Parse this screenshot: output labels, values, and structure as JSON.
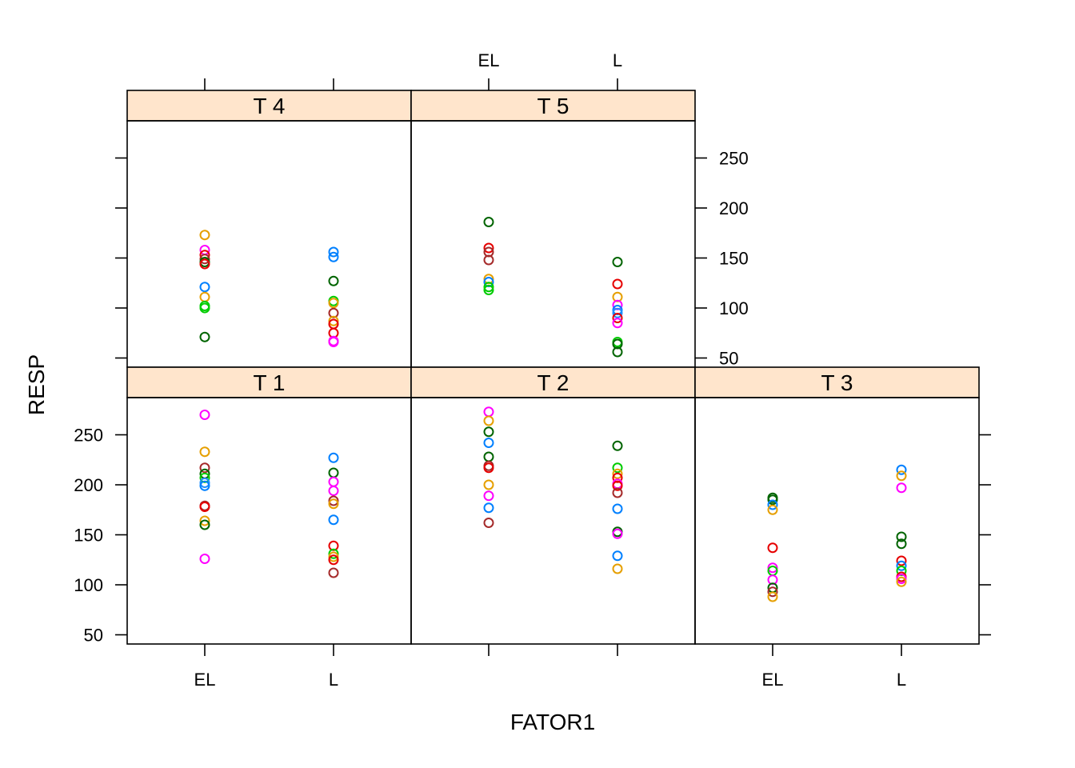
{
  "chart_data": {
    "type": "scatter",
    "layout": "trellis",
    "xlabel": "FATOR1",
    "ylabel": "RESP",
    "x_categories": [
      "EL",
      "L"
    ],
    "y_ticks": [
      50,
      100,
      150,
      200,
      250
    ],
    "strip_color": "#FFE5CC",
    "palette": [
      "#E69F00",
      "#FF00FF",
      "#A52A2A",
      "#0080FF",
      "#00CC00",
      "#006400",
      "#E60000",
      "#1E90FF"
    ],
    "panels": [
      {
        "id": "t4",
        "label": "T 4",
        "points": [
          {
            "x": "EL",
            "y": 173,
            "color": 0
          },
          {
            "x": "EL",
            "y": 158,
            "color": 1
          },
          {
            "x": "EL",
            "y": 153,
            "color": 6
          },
          {
            "x": "EL",
            "y": 149,
            "color": 2
          },
          {
            "x": "EL",
            "y": 146,
            "color": 5
          },
          {
            "x": "EL",
            "y": 144,
            "color": 6
          },
          {
            "x": "EL",
            "y": 121,
            "color": 3
          },
          {
            "x": "EL",
            "y": 111,
            "color": 0
          },
          {
            "x": "EL",
            "y": 102,
            "color": 4
          },
          {
            "x": "EL",
            "y": 100,
            "color": 4
          },
          {
            "x": "EL",
            "y": 71,
            "color": 5
          },
          {
            "x": "L",
            "y": 156,
            "color": 3
          },
          {
            "x": "L",
            "y": 151,
            "color": 3
          },
          {
            "x": "L",
            "y": 127,
            "color": 5
          },
          {
            "x": "L",
            "y": 107,
            "color": 4
          },
          {
            "x": "L",
            "y": 105,
            "color": 0
          },
          {
            "x": "L",
            "y": 95,
            "color": 2
          },
          {
            "x": "L",
            "y": 87,
            "color": 0
          },
          {
            "x": "L",
            "y": 84,
            "color": 6
          },
          {
            "x": "L",
            "y": 75,
            "color": 6
          },
          {
            "x": "L",
            "y": 67,
            "color": 1
          },
          {
            "x": "L",
            "y": 66,
            "color": 1
          }
        ]
      },
      {
        "id": "t5",
        "label": "T 5",
        "points": [
          {
            "x": "EL",
            "y": 186,
            "color": 5
          },
          {
            "x": "EL",
            "y": 160,
            "color": 6
          },
          {
            "x": "EL",
            "y": 156,
            "color": 2
          },
          {
            "x": "EL",
            "y": 148,
            "color": 2
          },
          {
            "x": "EL",
            "y": 129,
            "color": 0
          },
          {
            "x": "EL",
            "y": 126,
            "color": 3
          },
          {
            "x": "EL",
            "y": 121,
            "color": 4
          },
          {
            "x": "EL",
            "y": 118,
            "color": 4
          },
          {
            "x": "L",
            "y": 146,
            "color": 5
          },
          {
            "x": "L",
            "y": 124,
            "color": 6
          },
          {
            "x": "L",
            "y": 111,
            "color": 0
          },
          {
            "x": "L",
            "y": 103,
            "color": 1
          },
          {
            "x": "L",
            "y": 98,
            "color": 3
          },
          {
            "x": "L",
            "y": 95,
            "color": 7
          },
          {
            "x": "L",
            "y": 90,
            "color": 6
          },
          {
            "x": "L",
            "y": 85,
            "color": 1
          },
          {
            "x": "L",
            "y": 66,
            "color": 4
          },
          {
            "x": "L",
            "y": 64,
            "color": 5
          },
          {
            "x": "L",
            "y": 56,
            "color": 5
          }
        ]
      },
      {
        "id": "t1",
        "label": "T 1",
        "points": [
          {
            "x": "EL",
            "y": 270,
            "color": 1
          },
          {
            "x": "EL",
            "y": 233,
            "color": 0
          },
          {
            "x": "EL",
            "y": 217,
            "color": 2
          },
          {
            "x": "EL",
            "y": 211,
            "color": 5
          },
          {
            "x": "EL",
            "y": 207,
            "color": 4
          },
          {
            "x": "EL",
            "y": 202,
            "color": 7
          },
          {
            "x": "EL",
            "y": 199,
            "color": 3
          },
          {
            "x": "EL",
            "y": 179,
            "color": 2
          },
          {
            "x": "EL",
            "y": 178,
            "color": 6
          },
          {
            "x": "EL",
            "y": 164,
            "color": 0
          },
          {
            "x": "EL",
            "y": 160,
            "color": 5
          },
          {
            "x": "EL",
            "y": 126,
            "color": 1
          },
          {
            "x": "L",
            "y": 227,
            "color": 3
          },
          {
            "x": "L",
            "y": 212,
            "color": 5
          },
          {
            "x": "L",
            "y": 203,
            "color": 1
          },
          {
            "x": "L",
            "y": 194,
            "color": 1
          },
          {
            "x": "L",
            "y": 184,
            "color": 2
          },
          {
            "x": "L",
            "y": 181,
            "color": 0
          },
          {
            "x": "L",
            "y": 165,
            "color": 3
          },
          {
            "x": "L",
            "y": 139,
            "color": 6
          },
          {
            "x": "L",
            "y": 131,
            "color": 4
          },
          {
            "x": "L",
            "y": 128,
            "color": 0
          },
          {
            "x": "L",
            "y": 125,
            "color": 6
          },
          {
            "x": "L",
            "y": 112,
            "color": 2
          }
        ]
      },
      {
        "id": "t2",
        "label": "T 2",
        "points": [
          {
            "x": "EL",
            "y": 273,
            "color": 1
          },
          {
            "x": "EL",
            "y": 264,
            "color": 0
          },
          {
            "x": "EL",
            "y": 253,
            "color": 5
          },
          {
            "x": "EL",
            "y": 242,
            "color": 3
          },
          {
            "x": "EL",
            "y": 228,
            "color": 5
          },
          {
            "x": "EL",
            "y": 219,
            "color": 2
          },
          {
            "x": "EL",
            "y": 217,
            "color": 6
          },
          {
            "x": "EL",
            "y": 200,
            "color": 0
          },
          {
            "x": "EL",
            "y": 189,
            "color": 1
          },
          {
            "x": "EL",
            "y": 177,
            "color": 3
          },
          {
            "x": "EL",
            "y": 162,
            "color": 2
          },
          {
            "x": "L",
            "y": 239,
            "color": 5
          },
          {
            "x": "L",
            "y": 217,
            "color": 4
          },
          {
            "x": "L",
            "y": 211,
            "color": 0
          },
          {
            "x": "L",
            "y": 207,
            "color": 6
          },
          {
            "x": "L",
            "y": 201,
            "color": 1
          },
          {
            "x": "L",
            "y": 199,
            "color": 6
          },
          {
            "x": "L",
            "y": 192,
            "color": 2
          },
          {
            "x": "L",
            "y": 176,
            "color": 3
          },
          {
            "x": "L",
            "y": 153,
            "color": 5
          },
          {
            "x": "L",
            "y": 151,
            "color": 1
          },
          {
            "x": "L",
            "y": 129,
            "color": 3
          },
          {
            "x": "L",
            "y": 116,
            "color": 0
          }
        ]
      },
      {
        "id": "t3",
        "label": "T 3",
        "points": [
          {
            "x": "EL",
            "y": 187,
            "color": 5
          },
          {
            "x": "EL",
            "y": 185,
            "color": 5
          },
          {
            "x": "EL",
            "y": 180,
            "color": 3
          },
          {
            "x": "EL",
            "y": 175,
            "color": 0
          },
          {
            "x": "EL",
            "y": 137,
            "color": 6
          },
          {
            "x": "EL",
            "y": 117,
            "color": 1
          },
          {
            "x": "EL",
            "y": 114,
            "color": 4
          },
          {
            "x": "EL",
            "y": 105,
            "color": 1
          },
          {
            "x": "EL",
            "y": 97,
            "color": 5
          },
          {
            "x": "EL",
            "y": 93,
            "color": 2
          },
          {
            "x": "EL",
            "y": 88,
            "color": 0
          },
          {
            "x": "L",
            "y": 215,
            "color": 3
          },
          {
            "x": "L",
            "y": 209,
            "color": 0
          },
          {
            "x": "L",
            "y": 197,
            "color": 1
          },
          {
            "x": "L",
            "y": 148,
            "color": 5
          },
          {
            "x": "L",
            "y": 141,
            "color": 5
          },
          {
            "x": "L",
            "y": 124,
            "color": 6
          },
          {
            "x": "L",
            "y": 119,
            "color": 3
          },
          {
            "x": "L",
            "y": 114,
            "color": 4
          },
          {
            "x": "L",
            "y": 108,
            "color": 6
          },
          {
            "x": "L",
            "y": 106,
            "color": 1
          },
          {
            "x": "L",
            "y": 103,
            "color": 0
          }
        ]
      }
    ]
  }
}
